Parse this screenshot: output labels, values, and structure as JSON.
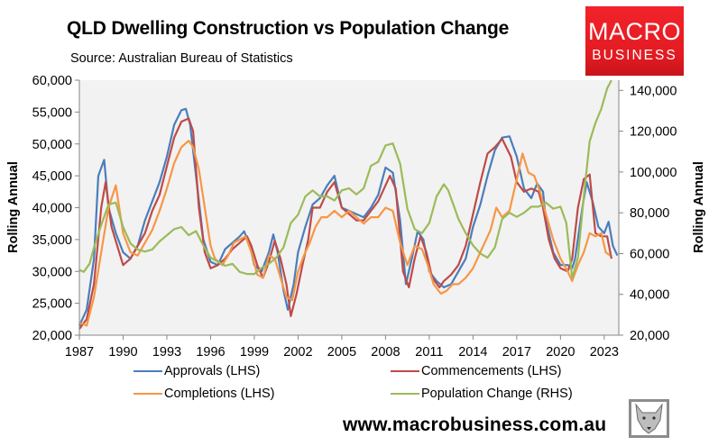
{
  "header": {
    "title": "QLD Dwelling Construction vs Population Change",
    "subtitle": "Source: Australian Bureau of Statistics"
  },
  "logo": {
    "line1": "MACRO",
    "line2": "BUSINESS",
    "color": "#e31b22"
  },
  "footer": {
    "website": "www.macrobusiness.com.au",
    "wolf_icon": "wolf-head-icon"
  },
  "chart_data": {
    "type": "line",
    "title": "QLD Dwelling Construction vs Population Change",
    "subtitle": "Source: Australian Bureau of Statistics",
    "xlabel": "",
    "ylabel": "Rolling Annual",
    "y2label": "Rolling Annual",
    "xlim": [
      1987,
      2024
    ],
    "ylim": [
      20000,
      60000
    ],
    "y2lim": [
      20000,
      145000
    ],
    "grid": false,
    "plot_background": "#f2f2f2",
    "legend_position": "bottom",
    "x_ticks": [
      1987,
      1990,
      1993,
      1996,
      1999,
      2002,
      2005,
      2008,
      2011,
      2014,
      2017,
      2020,
      2023
    ],
    "x_tick_labels": [
      "1987",
      "1990",
      "1993",
      "1996",
      "1999",
      "2002",
      "2005",
      "2008",
      "2011",
      "2014",
      "2017",
      "2020",
      "2023"
    ],
    "y_ticks": [
      20000,
      25000,
      30000,
      35000,
      40000,
      45000,
      50000,
      55000,
      60000
    ],
    "y_tick_labels": [
      "20,000",
      "25,000",
      "30,000",
      "35,000",
      "40,000",
      "45,000",
      "50,000",
      "55,000",
      "60,000"
    ],
    "y2_ticks": [
      20000,
      40000,
      60000,
      80000,
      100000,
      120000,
      140000
    ],
    "y2_tick_labels": [
      "20,000",
      "40,000",
      "60,000",
      "80,000",
      "100,000",
      "120,000",
      "140,000"
    ],
    "series": [
      {
        "name": "Approvals (LHS)",
        "axis": "left",
        "color": "#4a7ebb",
        "x": [
          1987.0,
          1987.5,
          1988.0,
          1988.3,
          1988.7,
          1989.0,
          1989.5,
          1990.0,
          1990.5,
          1991.0,
          1991.5,
          1992.0,
          1992.5,
          1993.0,
          1993.5,
          1994.0,
          1994.3,
          1994.6,
          1995.0,
          1995.5,
          1996.0,
          1996.5,
          1997.0,
          1997.5,
          1998.0,
          1998.3,
          1998.7,
          1999.0,
          1999.5,
          2000.0,
          2000.3,
          2000.6,
          2001.0,
          2001.3,
          2001.7,
          2002.0,
          2002.5,
          2003.0,
          2003.5,
          2004.0,
          2004.5,
          2005.0,
          2005.5,
          2006.0,
          2006.5,
          2007.0,
          2007.5,
          2008.0,
          2008.5,
          2009.0,
          2009.4,
          2009.8,
          2010.2,
          2010.6,
          2011.0,
          2011.5,
          2012.0,
          2012.5,
          2013.0,
          2013.5,
          2014.0,
          2014.5,
          2015.0,
          2015.5,
          2016.0,
          2016.5,
          2017.0,
          2017.5,
          2018.0,
          2018.4,
          2018.8,
          2019.0,
          2019.5,
          2020.0,
          2020.5,
          2020.8,
          2021.0,
          2021.5,
          2021.8,
          2022.2,
          2022.6,
          2023.0,
          2023.3,
          2023.6,
          2023.9
        ],
        "values": [
          21500,
          24000,
          32000,
          45000,
          47500,
          40000,
          36000,
          33000,
          32000,
          34000,
          38000,
          41000,
          44000,
          48000,
          53000,
          55300,
          55500,
          53000,
          45000,
          35000,
          31500,
          31000,
          33500,
          34500,
          35500,
          36300,
          34000,
          31000,
          30000,
          33000,
          35800,
          33000,
          27000,
          24000,
          28000,
          33000,
          37000,
          40500,
          41500,
          43500,
          45000,
          40000,
          39500,
          39000,
          38500,
          40000,
          42000,
          46300,
          45500,
          38000,
          28000,
          32000,
          36300,
          35000,
          30000,
          28500,
          27500,
          28000,
          30000,
          32000,
          37000,
          40500,
          45000,
          49000,
          51000,
          51200,
          48000,
          43000,
          41500,
          43800,
          42500,
          38000,
          33000,
          31000,
          31000,
          30500,
          32000,
          40000,
          44000,
          41000,
          37000,
          36000,
          37800,
          34000,
          32500
        ]
      },
      {
        "name": "Commencements (LHS)",
        "axis": "left",
        "color": "#be4b48",
        "x": [
          1987.0,
          1987.5,
          1988.0,
          1988.5,
          1988.8,
          1989.2,
          1989.6,
          1990.0,
          1990.5,
          1991.0,
          1991.5,
          1992.0,
          1992.5,
          1993.0,
          1993.5,
          1994.0,
          1994.5,
          1994.8,
          1995.2,
          1995.6,
          1996.0,
          1996.5,
          1997.0,
          1997.5,
          1998.0,
          1998.5,
          1998.8,
          1999.2,
          1999.6,
          2000.0,
          2000.4,
          2000.8,
          2001.2,
          2001.5,
          2001.9,
          2002.3,
          2002.7,
          2003.0,
          2003.5,
          2004.0,
          2004.5,
          2005.0,
          2005.5,
          2006.0,
          2006.5,
          2007.0,
          2007.5,
          2008.0,
          2008.3,
          2008.7,
          2009.2,
          2009.6,
          2010.0,
          2010.4,
          2010.8,
          2011.2,
          2011.7,
          2012.0,
          2012.5,
          2013.0,
          2013.5,
          2014.0,
          2014.5,
          2015.0,
          2015.5,
          2016.0,
          2016.6,
          2017.0,
          2017.5,
          2018.0,
          2018.5,
          2018.8,
          2019.2,
          2019.6,
          2020.0,
          2020.5,
          2020.8,
          2021.2,
          2021.6,
          2022.0,
          2022.4,
          2022.8,
          2023.2,
          2023.5
        ],
        "values": [
          21000,
          22500,
          28000,
          40000,
          44000,
          37000,
          34000,
          31000,
          32000,
          34000,
          36000,
          39500,
          42000,
          46500,
          51000,
          53500,
          54000,
          52000,
          40000,
          33000,
          30500,
          31000,
          32000,
          33500,
          34500,
          35500,
          34000,
          31000,
          29000,
          31500,
          34800,
          32000,
          28000,
          23000,
          26500,
          31000,
          35000,
          40000,
          40000,
          42500,
          44000,
          40000,
          39000,
          38000,
          38000,
          39500,
          41000,
          43500,
          45000,
          43000,
          30000,
          27500,
          32000,
          35500,
          33000,
          29000,
          27500,
          28500,
          29500,
          31000,
          34000,
          39000,
          44000,
          48500,
          49500,
          50800,
          48000,
          44000,
          42500,
          43000,
          42500,
          40000,
          35000,
          32000,
          30500,
          30000,
          32000,
          40000,
          44500,
          45200,
          36000,
          35500,
          35500,
          32000
        ]
      },
      {
        "name": "Completions (LHS)",
        "axis": "left",
        "color": "#f79646",
        "x": [
          1987.0,
          1987.5,
          1988.0,
          1988.5,
          1989.0,
          1989.5,
          1990.0,
          1990.5,
          1991.0,
          1991.5,
          1992.0,
          1992.5,
          1993.0,
          1993.5,
          1994.0,
          1994.5,
          1994.8,
          1995.2,
          1995.6,
          1996.0,
          1996.3,
          1996.8,
          1997.2,
          1997.6,
          1998.0,
          1998.4,
          1998.8,
          1999.2,
          1999.6,
          2000.0,
          2000.4,
          2000.8,
          2001.2,
          2001.6,
          2002.0,
          2002.4,
          2002.8,
          2003.2,
          2003.6,
          2004.0,
          2004.5,
          2005.0,
          2005.5,
          2006.0,
          2006.5,
          2007.0,
          2007.5,
          2008.0,
          2008.5,
          2009.0,
          2009.5,
          2010.0,
          2010.5,
          2010.9,
          2011.3,
          2011.8,
          2012.2,
          2012.6,
          2013.0,
          2013.5,
          2014.0,
          2014.5,
          2014.8,
          2015.2,
          2015.6,
          2016.0,
          2016.5,
          2017.0,
          2017.4,
          2017.8,
          2018.2,
          2018.6,
          2019.0,
          2019.5,
          2020.0,
          2020.5,
          2020.8,
          2021.2,
          2021.6,
          2022.0,
          2022.4,
          2022.8,
          2023.1,
          2023.4
        ],
        "values": [
          22000,
          21500,
          26000,
          33000,
          40000,
          43500,
          36000,
          33000,
          32500,
          34500,
          36500,
          39500,
          43000,
          47000,
          49500,
          50500,
          49500,
          46000,
          40000,
          34000,
          32000,
          31000,
          32500,
          34500,
          35000,
          35500,
          33000,
          29500,
          29000,
          32500,
          32000,
          29000,
          26000,
          25500,
          30000,
          32500,
          34500,
          37000,
          38500,
          38500,
          39500,
          38500,
          39500,
          38500,
          37500,
          38500,
          38500,
          40000,
          39500,
          34500,
          31000,
          34000,
          33500,
          31000,
          28000,
          26500,
          27000,
          28000,
          28000,
          29000,
          30500,
          33000,
          34500,
          36500,
          40000,
          38500,
          39500,
          44500,
          48500,
          45500,
          45000,
          42500,
          39000,
          35000,
          32000,
          30000,
          28500,
          31000,
          33000,
          36000,
          35500,
          36000,
          33000,
          32500
        ]
      },
      {
        "name": "Population Change (RHS)",
        "axis": "right",
        "color": "#9bbb59",
        "x": [
          1987.0,
          1987.3,
          1987.7,
          1988.0,
          1988.5,
          1989.0,
          1989.5,
          1990.0,
          1990.5,
          1991.0,
          1991.5,
          1992.0,
          1992.5,
          1993.0,
          1993.5,
          1994.0,
          1994.5,
          1995.0,
          1995.5,
          1996.0,
          1996.5,
          1997.0,
          1997.5,
          1998.0,
          1998.5,
          1999.0,
          1999.5,
          2000.0,
          2000.5,
          2001.0,
          2001.5,
          2002.0,
          2002.5,
          2003.0,
          2003.5,
          2004.0,
          2004.5,
          2005.0,
          2005.5,
          2006.0,
          2006.5,
          2007.0,
          2007.5,
          2008.0,
          2008.5,
          2009.0,
          2009.5,
          2010.0,
          2010.5,
          2011.0,
          2011.5,
          2012.0,
          2012.3,
          2012.7,
          2013.0,
          2013.5,
          2014.0,
          2014.5,
          2015.0,
          2015.5,
          2016.0,
          2016.5,
          2017.0,
          2017.5,
          2018.0,
          2018.5,
          2019.0,
          2019.5,
          2020.0,
          2020.4,
          2020.8,
          2021.2,
          2021.6,
          2022.0,
          2022.4,
          2022.8,
          2023.2,
          2023.5
        ],
        "values": [
          52000,
          51000,
          55000,
          63000,
          74000,
          84000,
          85000,
          73000,
          65000,
          62000,
          61000,
          62000,
          66000,
          69000,
          72000,
          73000,
          69000,
          71000,
          64000,
          58000,
          56000,
          54000,
          55000,
          51000,
          50000,
          50000,
          53000,
          55000,
          58000,
          63000,
          75000,
          79000,
          88000,
          91000,
          88000,
          88000,
          86000,
          91000,
          92000,
          89000,
          92000,
          103000,
          105000,
          113000,
          114000,
          104000,
          82000,
          72000,
          70000,
          75000,
          88000,
          94000,
          91000,
          83000,
          77000,
          70000,
          64000,
          60000,
          58000,
          63000,
          77000,
          80000,
          78000,
          80000,
          83000,
          83000,
          85000,
          82000,
          83000,
          75000,
          48000,
          58000,
          88000,
          115000,
          124000,
          131000,
          141000,
          145000
        ]
      }
    ]
  }
}
